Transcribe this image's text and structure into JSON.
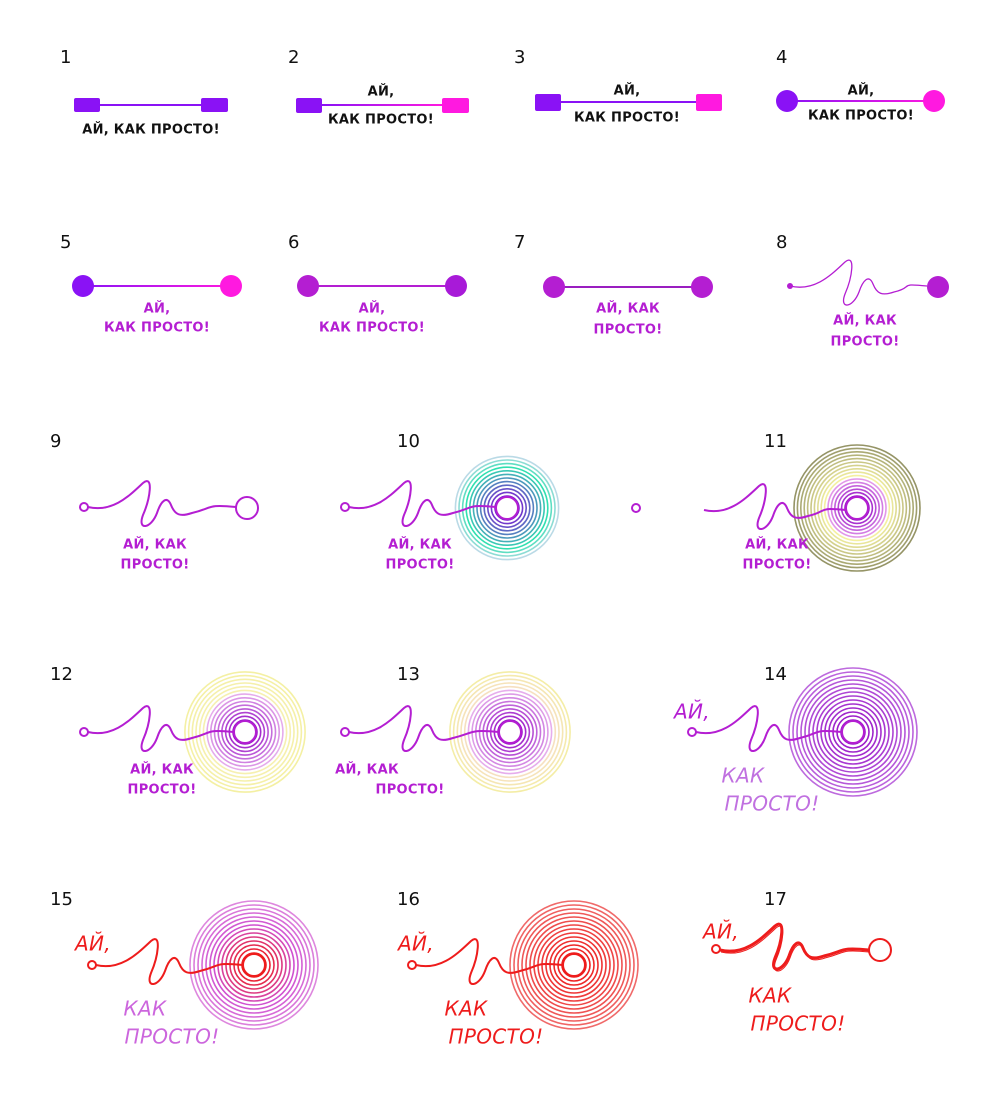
{
  "items": [
    {
      "number": "1",
      "lines": [
        "АЙ, КАК ПРОСТО!"
      ]
    },
    {
      "number": "2",
      "lines": [
        "АЙ,",
        "КАК ПРОСТО!"
      ]
    },
    {
      "number": "3",
      "lines": [
        "АЙ,",
        "КАК ПРОСТО!"
      ]
    },
    {
      "number": "4",
      "lines": [
        "АЙ,",
        "КАК ПРОСТО!"
      ]
    },
    {
      "number": "5",
      "lines": [
        "АЙ,",
        "КАК ПРОСТО!"
      ]
    },
    {
      "number": "6",
      "lines": [
        "АЙ,",
        "КАК ПРОСТО!"
      ]
    },
    {
      "number": "7",
      "lines": [
        "АЙ, КАК",
        "ПРОСТО!"
      ]
    },
    {
      "number": "8",
      "lines": [
        "АЙ, КАК",
        "ПРОСТО!"
      ]
    },
    {
      "number": "9",
      "lines": [
        "АЙ, КАК",
        "ПРОСТО!"
      ]
    },
    {
      "number": "10",
      "lines": [
        "АЙ, КАК",
        "ПРОСТО!"
      ]
    },
    {
      "number": "11",
      "lines": [
        "АЙ, КАК",
        "ПРОСТО!"
      ]
    },
    {
      "number": "12",
      "lines": [
        "АЙ, КАК",
        "ПРОСТО!"
      ]
    },
    {
      "number": "13",
      "lines": [
        "АЙ, КАК",
        "ПРОСТО!"
      ]
    },
    {
      "number": "14",
      "lines": [
        "АЙ,",
        "КАК",
        "ПРОСТО!"
      ]
    },
    {
      "number": "15",
      "lines": [
        "АЙ,",
        "КАК",
        "ПРОСТО!"
      ]
    },
    {
      "number": "16",
      "lines": [
        "АЙ,",
        "КАК",
        "ПРОСТО!"
      ]
    },
    {
      "number": "17",
      "lines": [
        "АЙ,",
        "КАК",
        "ПРОСТО!"
      ]
    }
  ]
}
